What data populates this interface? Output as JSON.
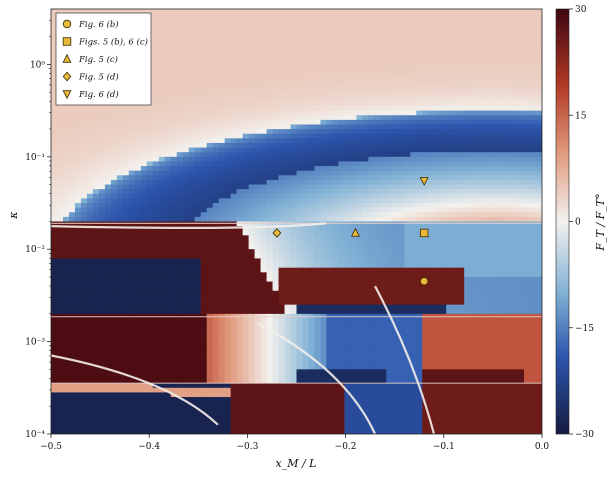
{
  "chart_data": {
    "type": "heatmap",
    "title": "",
    "xlabel": "x_M / L",
    "ylabel": "κ",
    "x_range": [
      -0.5,
      0.0
    ],
    "y_range_log10": [
      -4,
      0.6
    ],
    "y_scale": "log",
    "x_ticks": [
      -0.5,
      -0.4,
      -0.3,
      -0.2,
      -0.1,
      0.0
    ],
    "x_tick_labels": [
      "−0.5",
      "−0.4",
      "−0.3",
      "−0.2",
      "−0.1",
      "0.0"
    ],
    "y_ticks_log10": [
      -4,
      -3,
      -2,
      -1,
      0
    ],
    "y_tick_labels": [
      "10⁻⁴",
      "10⁻³",
      "10⁻²",
      "10⁻¹",
      "10⁰"
    ],
    "colorbar": {
      "label": "F_T / F_T°",
      "range": [
        -30,
        30
      ],
      "ticks": [
        -30,
        -15,
        0,
        15,
        30
      ],
      "tick_labels": [
        "−30",
        "−15",
        "0",
        "15",
        "30"
      ],
      "colormap": "blue-white-red (diverging)"
    },
    "legend_placement": "top-left",
    "markers": [
      {
        "label": "Fig. 6 (b)",
        "shape": "circle",
        "x": -0.12,
        "kappa": 0.0045
      },
      {
        "label": "Figs. 5 (b), 6 (c)",
        "shape": "square",
        "x": -0.12,
        "kappa": 0.015
      },
      {
        "label": "Fig. 5 (c)",
        "shape": "triangle-up",
        "x": -0.19,
        "kappa": 0.015
      },
      {
        "label": "Fig. 5 (d)",
        "shape": "diamond",
        "x": -0.27,
        "kappa": 0.015
      },
      {
        "label": "Fig. 6 (d)",
        "shape": "triangle-down",
        "x": -0.12,
        "kappa": 0.055
      }
    ],
    "marker_color": "#e8b93a"
  }
}
